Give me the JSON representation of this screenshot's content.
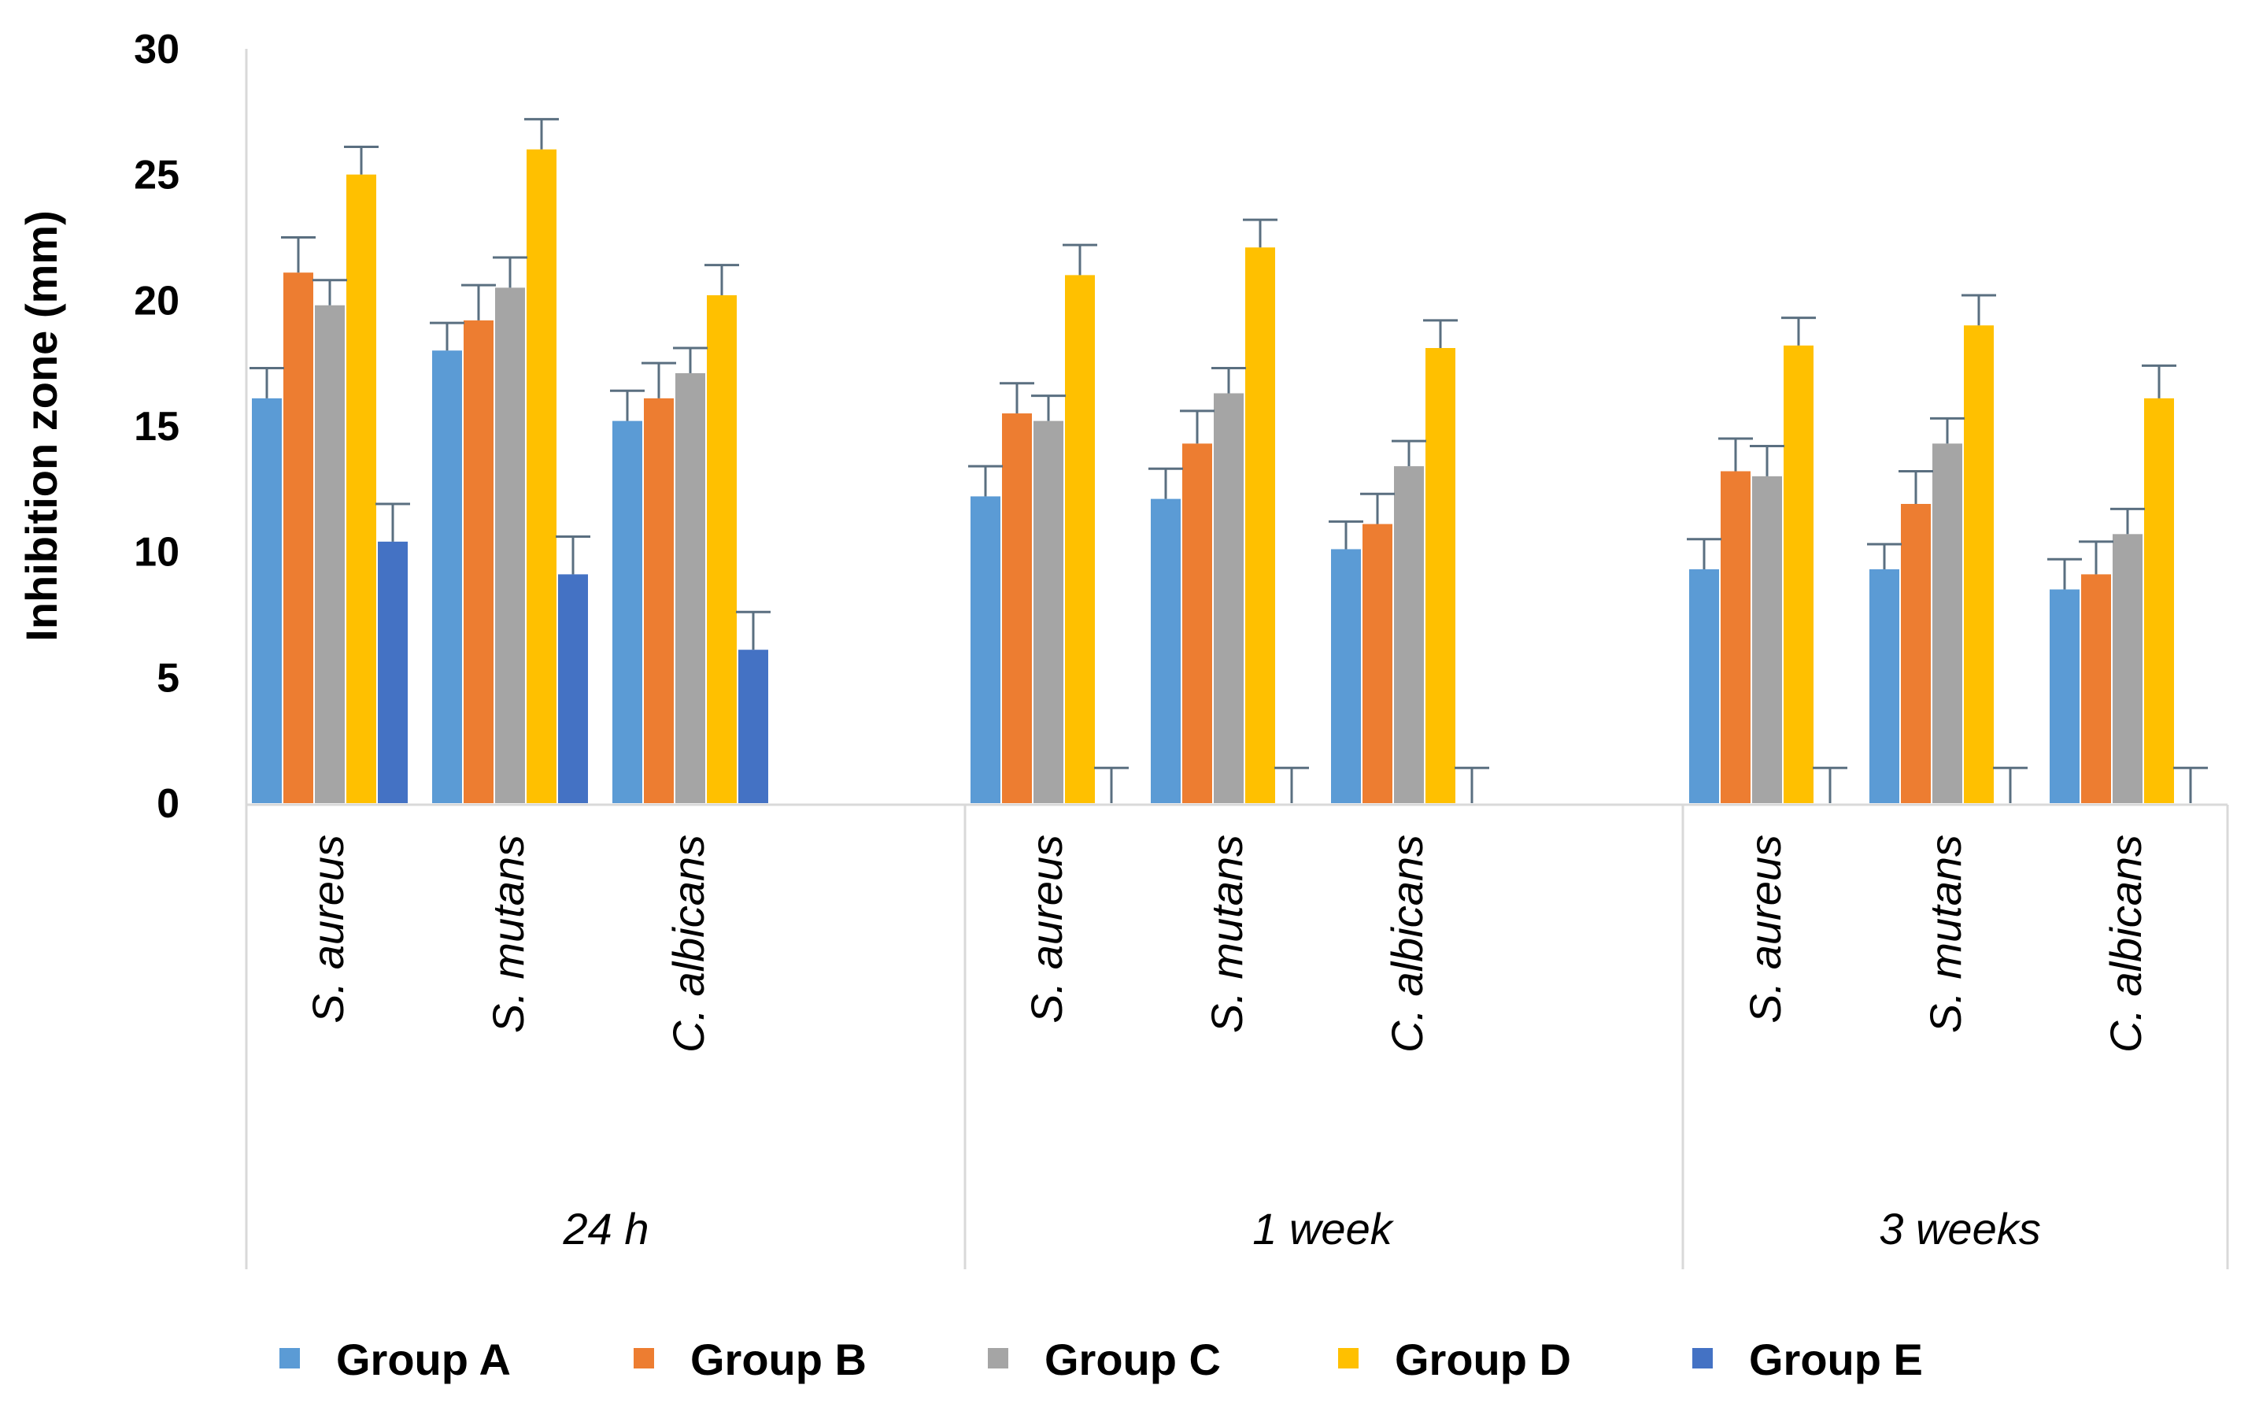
{
  "chart_data": {
    "type": "bar",
    "ylabel": "Inhibition zone (mm)",
    "ylim": [
      0,
      30
    ],
    "yticks": [
      0,
      5,
      10,
      15,
      20,
      25,
      30
    ],
    "grid": false,
    "legend_position": "bottom",
    "groups": [
      {
        "label": "24 h",
        "categories": [
          "S. aureus",
          "S. mutans",
          "C. albicans"
        ]
      },
      {
        "label": "1 week",
        "categories": [
          "S. aureus",
          "S. mutans",
          "C. albicans"
        ]
      },
      {
        "label": "3 weeks",
        "categories": [
          "S. aureus",
          "S. mutans",
          "C. albicans"
        ]
      }
    ],
    "series": [
      {
        "name": "Group A",
        "color": "#5b9bd5",
        "values": [
          16.1,
          18.0,
          15.2,
          12.2,
          12.1,
          10.1,
          9.3,
          9.3,
          8.5
        ],
        "errors": [
          1.2,
          1.1,
          1.2,
          1.2,
          1.2,
          1.1,
          1.2,
          1.0,
          1.2
        ]
      },
      {
        "name": "Group B",
        "color": "#ed7d31",
        "values": [
          21.1,
          19.2,
          16.1,
          15.5,
          14.3,
          11.1,
          13.2,
          11.9,
          9.1
        ],
        "errors": [
          1.4,
          1.4,
          1.4,
          1.2,
          1.3,
          1.2,
          1.3,
          1.3,
          1.3
        ]
      },
      {
        "name": "Group C",
        "color": "#a5a5a5",
        "values": [
          19.8,
          20.5,
          17.1,
          15.2,
          16.3,
          13.4,
          13.0,
          14.3,
          10.7
        ],
        "errors": [
          1.0,
          1.2,
          1.0,
          1.0,
          1.0,
          1.0,
          1.2,
          1.0,
          1.0
        ]
      },
      {
        "name": "Group D",
        "color": "#ffc000",
        "values": [
          25.0,
          26.0,
          20.2,
          21.0,
          22.1,
          18.1,
          18.2,
          19.0,
          16.1
        ],
        "errors": [
          1.1,
          1.2,
          1.2,
          1.2,
          1.1,
          1.1,
          1.1,
          1.2,
          1.3
        ]
      },
      {
        "name": "Group E",
        "color": "#4472c4",
        "values": [
          10.4,
          9.1,
          6.1,
          0,
          0,
          0,
          0,
          0,
          0
        ],
        "errors": [
          1.5,
          1.5,
          1.5,
          1.4,
          1.4,
          1.4,
          1.4,
          1.4,
          1.4
        ]
      }
    ]
  }
}
